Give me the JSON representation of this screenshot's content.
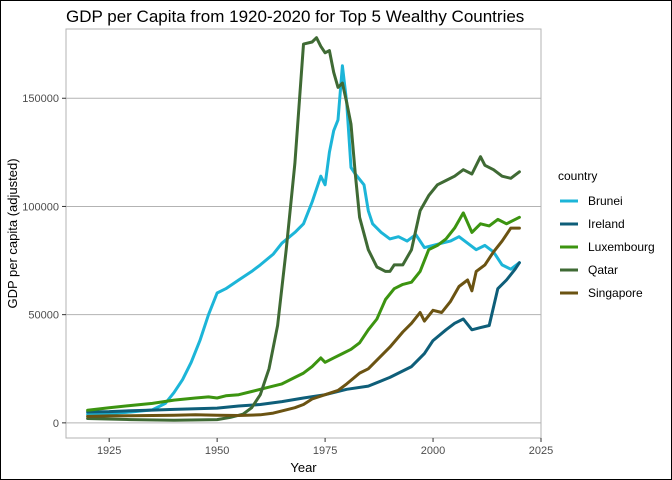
{
  "chart_data": {
    "type": "line",
    "title": "GDP per Capita from 1920-2020 for Top 5 Wealthy Countries",
    "xlabel": "Year",
    "ylabel": "GDP per capita (adjusted)",
    "xlim": [
      1915,
      2025
    ],
    "ylim": [
      -7000,
      182000
    ],
    "x_ticks": [
      1925,
      1950,
      1975,
      2000,
      2025
    ],
    "y_ticks": [
      0,
      50000,
      100000,
      150000
    ],
    "grid": true,
    "legend": {
      "title": "country",
      "position": "right"
    },
    "series": [
      {
        "name": "Brunei",
        "color": "#1cb5d8",
        "points": [
          [
            1920,
            4000
          ],
          [
            1925,
            4300
          ],
          [
            1930,
            5000
          ],
          [
            1935,
            6000
          ],
          [
            1938,
            9000
          ],
          [
            1940,
            14000
          ],
          [
            1942,
            20000
          ],
          [
            1944,
            28000
          ],
          [
            1946,
            38000
          ],
          [
            1948,
            50000
          ],
          [
            1950,
            60000
          ],
          [
            1952,
            62000
          ],
          [
            1955,
            66000
          ],
          [
            1958,
            70000
          ],
          [
            1960,
            73000
          ],
          [
            1963,
            78000
          ],
          [
            1965,
            83000
          ],
          [
            1968,
            88000
          ],
          [
            1970,
            92000
          ],
          [
            1972,
            102000
          ],
          [
            1974,
            114000
          ],
          [
            1975,
            110000
          ],
          [
            1976,
            125000
          ],
          [
            1977,
            135000
          ],
          [
            1978,
            140000
          ],
          [
            1979,
            165000
          ],
          [
            1980,
            148000
          ],
          [
            1981,
            118000
          ],
          [
            1982,
            115000
          ],
          [
            1984,
            110000
          ],
          [
            1985,
            98000
          ],
          [
            1986,
            92000
          ],
          [
            1988,
            88000
          ],
          [
            1990,
            85000
          ],
          [
            1992,
            86000
          ],
          [
            1994,
            84000
          ],
          [
            1996,
            87000
          ],
          [
            1998,
            81000
          ],
          [
            2000,
            82000
          ],
          [
            2002,
            83000
          ],
          [
            2004,
            84000
          ],
          [
            2006,
            86000
          ],
          [
            2008,
            83000
          ],
          [
            2010,
            80000
          ],
          [
            2012,
            82000
          ],
          [
            2014,
            79000
          ],
          [
            2016,
            73000
          ],
          [
            2018,
            71000
          ],
          [
            2020,
            74000
          ]
        ]
      },
      {
        "name": "Ireland",
        "color": "#0e5e79",
        "points": [
          [
            1920,
            5000
          ],
          [
            1925,
            5200
          ],
          [
            1930,
            5600
          ],
          [
            1935,
            5900
          ],
          [
            1940,
            6200
          ],
          [
            1945,
            6500
          ],
          [
            1950,
            6800
          ],
          [
            1955,
            7800
          ],
          [
            1960,
            8500
          ],
          [
            1965,
            9800
          ],
          [
            1970,
            11500
          ],
          [
            1975,
            13000
          ],
          [
            1980,
            15500
          ],
          [
            1985,
            17000
          ],
          [
            1990,
            21000
          ],
          [
            1995,
            26000
          ],
          [
            1998,
            32000
          ],
          [
            2000,
            38000
          ],
          [
            2003,
            43000
          ],
          [
            2005,
            46000
          ],
          [
            2007,
            48000
          ],
          [
            2009,
            43000
          ],
          [
            2011,
            44000
          ],
          [
            2013,
            45000
          ],
          [
            2015,
            62000
          ],
          [
            2017,
            66000
          ],
          [
            2019,
            71000
          ],
          [
            2020,
            74000
          ]
        ]
      },
      {
        "name": "Luxembourg",
        "color": "#3c9410",
        "points": [
          [
            1920,
            5800
          ],
          [
            1925,
            7000
          ],
          [
            1930,
            8000
          ],
          [
            1935,
            9000
          ],
          [
            1940,
            10500
          ],
          [
            1945,
            11500
          ],
          [
            1948,
            12000
          ],
          [
            1950,
            11500
          ],
          [
            1952,
            12500
          ],
          [
            1955,
            13000
          ],
          [
            1958,
            14500
          ],
          [
            1960,
            15500
          ],
          [
            1963,
            17000
          ],
          [
            1965,
            18000
          ],
          [
            1968,
            21000
          ],
          [
            1970,
            23000
          ],
          [
            1972,
            26000
          ],
          [
            1974,
            30000
          ],
          [
            1975,
            28000
          ],
          [
            1977,
            30000
          ],
          [
            1979,
            32000
          ],
          [
            1981,
            34000
          ],
          [
            1983,
            37000
          ],
          [
            1985,
            43000
          ],
          [
            1987,
            48000
          ],
          [
            1989,
            57000
          ],
          [
            1991,
            62000
          ],
          [
            1993,
            64000
          ],
          [
            1995,
            65000
          ],
          [
            1997,
            70000
          ],
          [
            1999,
            80000
          ],
          [
            2001,
            82000
          ],
          [
            2003,
            85000
          ],
          [
            2005,
            90000
          ],
          [
            2007,
            97000
          ],
          [
            2009,
            88000
          ],
          [
            2011,
            92000
          ],
          [
            2013,
            91000
          ],
          [
            2015,
            94000
          ],
          [
            2017,
            92000
          ],
          [
            2020,
            95000
          ]
        ]
      },
      {
        "name": "Qatar",
        "color": "#3f6a34",
        "points": [
          [
            1920,
            2000
          ],
          [
            1930,
            1500
          ],
          [
            1940,
            1200
          ],
          [
            1950,
            1500
          ],
          [
            1953,
            2500
          ],
          [
            1956,
            4000
          ],
          [
            1958,
            7000
          ],
          [
            1960,
            13000
          ],
          [
            1962,
            25000
          ],
          [
            1964,
            45000
          ],
          [
            1966,
            80000
          ],
          [
            1968,
            120000
          ],
          [
            1970,
            175000
          ],
          [
            1972,
            176000
          ],
          [
            1973,
            178000
          ],
          [
            1974,
            174000
          ],
          [
            1975,
            171000
          ],
          [
            1976,
            172000
          ],
          [
            1977,
            162000
          ],
          [
            1978,
            155000
          ],
          [
            1979,
            157000
          ],
          [
            1980,
            148000
          ],
          [
            1981,
            138000
          ],
          [
            1982,
            115000
          ],
          [
            1983,
            95000
          ],
          [
            1985,
            80000
          ],
          [
            1987,
            72000
          ],
          [
            1989,
            70000
          ],
          [
            1990,
            70000
          ],
          [
            1991,
            73000
          ],
          [
            1993,
            73000
          ],
          [
            1995,
            80000
          ],
          [
            1997,
            98000
          ],
          [
            1999,
            105000
          ],
          [
            2001,
            110000
          ],
          [
            2003,
            112000
          ],
          [
            2005,
            114000
          ],
          [
            2007,
            117000
          ],
          [
            2009,
            115000
          ],
          [
            2011,
            123000
          ],
          [
            2012,
            119000
          ],
          [
            2014,
            117000
          ],
          [
            2016,
            114000
          ],
          [
            2018,
            113000
          ],
          [
            2020,
            116000
          ]
        ]
      },
      {
        "name": "Singapore",
        "color": "#6b5312",
        "points": [
          [
            1920,
            3000
          ],
          [
            1925,
            3200
          ],
          [
            1930,
            3300
          ],
          [
            1935,
            3400
          ],
          [
            1940,
            3500
          ],
          [
            1945,
            3700
          ],
          [
            1950,
            3500
          ],
          [
            1955,
            3400
          ],
          [
            1960,
            3700
          ],
          [
            1963,
            4500
          ],
          [
            1965,
            5500
          ],
          [
            1968,
            7000
          ],
          [
            1970,
            8500
          ],
          [
            1972,
            11000
          ],
          [
            1975,
            13000
          ],
          [
            1978,
            15000
          ],
          [
            1980,
            18000
          ],
          [
            1983,
            23000
          ],
          [
            1985,
            25000
          ],
          [
            1988,
            31000
          ],
          [
            1990,
            35000
          ],
          [
            1993,
            42000
          ],
          [
            1995,
            46000
          ],
          [
            1997,
            51000
          ],
          [
            1998,
            47000
          ],
          [
            2000,
            52000
          ],
          [
            2002,
            51000
          ],
          [
            2004,
            56000
          ],
          [
            2006,
            63000
          ],
          [
            2008,
            66000
          ],
          [
            2009,
            61000
          ],
          [
            2010,
            70000
          ],
          [
            2012,
            73000
          ],
          [
            2014,
            79000
          ],
          [
            2016,
            84000
          ],
          [
            2018,
            90000
          ],
          [
            2020,
            90000
          ]
        ]
      }
    ]
  }
}
